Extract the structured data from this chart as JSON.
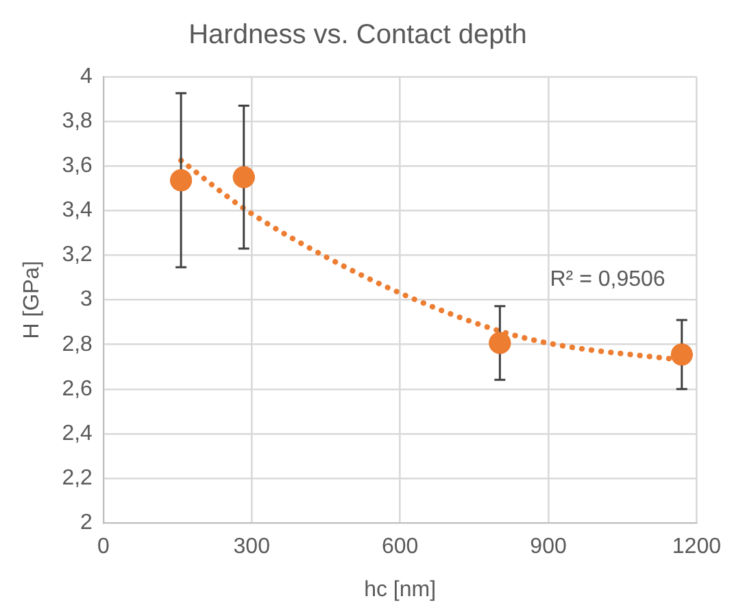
{
  "chart_data": {
    "type": "scatter",
    "title": "Hardness vs. Contact depth",
    "xlabel": "hc [nm]",
    "ylabel": "H [GPa]",
    "series": [
      {
        "color": "#ed7d31",
        "x": [
          157,
          284,
          802,
          1170
        ],
        "values": [
          3.536,
          3.55,
          2.807,
          2.755
        ],
        "errors": [
          0.39,
          0.32,
          0.165,
          0.155
        ],
        "marker": "circle"
      },
      {
        "type": "line",
        "color": "#ed7d31",
        "x": [
          157,
          284,
          444,
          611,
          802,
          914,
          1170
        ],
        "values": [
          3.625,
          3.41,
          3.2,
          3.02,
          2.86,
          2.8,
          2.73
        ],
        "line_style": "dotted",
        "marker": "none"
      }
    ],
    "annotations": [
      "R² = 0,9506"
    ],
    "xlim": [
      0,
      1200
    ],
    "xticks": [
      0,
      300,
      600,
      900,
      1200
    ],
    "ylim": [
      2,
      4
    ],
    "yticks": [
      2,
      {
        "value": 2.2,
        "label": "2,2"
      },
      {
        "value": 2.4,
        "label": "2,4"
      },
      {
        "value": 2.6,
        "label": "2,6"
      },
      {
        "value": 2.8,
        "label": "2,8"
      },
      3,
      {
        "value": 3.2,
        "label": "3,2"
      },
      {
        "value": 3.4,
        "label": "3,4"
      },
      {
        "value": 3.6,
        "label": "3,6"
      },
      {
        "value": 3.8,
        "label": "3,8"
      },
      4
    ],
    "grid": true,
    "legend": false
  }
}
